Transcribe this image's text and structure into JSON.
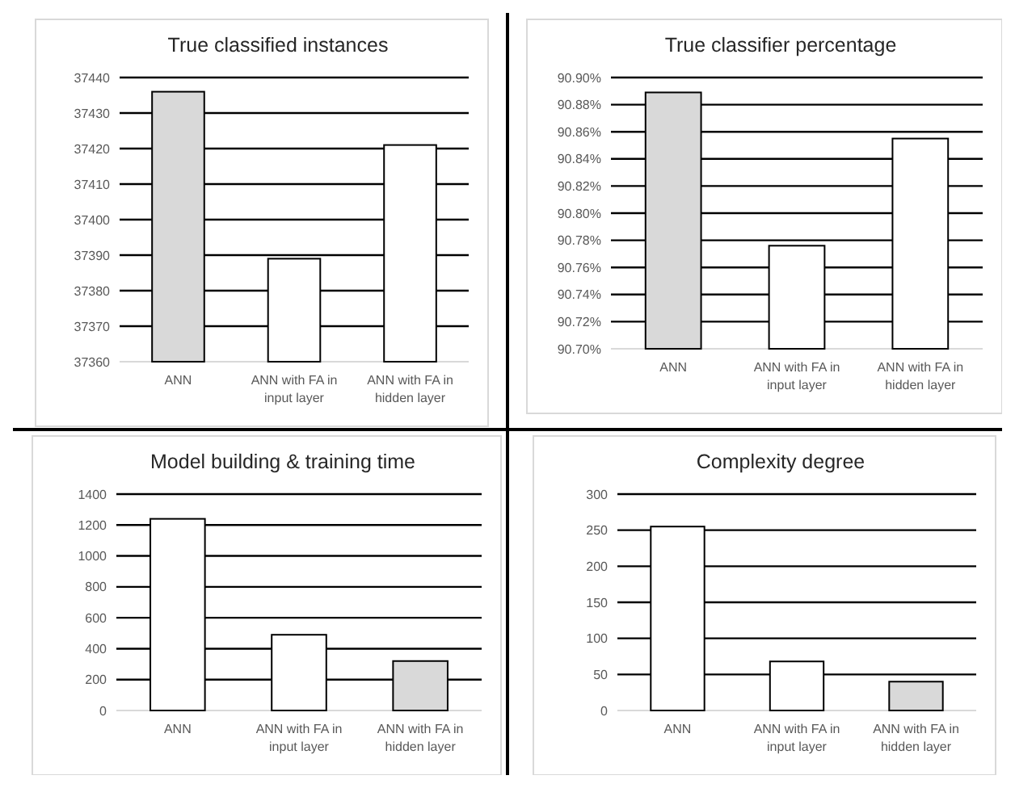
{
  "chart_data": [
    {
      "type": "bar",
      "title": "True classified instances",
      "categories": [
        "ANN",
        "ANN with FA in input layer",
        "ANN with FA in hidden layer"
      ],
      "values": [
        37436,
        37389,
        37421
      ],
      "colors": [
        "#d9d9d9",
        "#ffffff",
        "#ffffff"
      ],
      "ylim": [
        37360,
        37440
      ],
      "yticks": [
        37360,
        37370,
        37380,
        37390,
        37400,
        37410,
        37420,
        37430,
        37440
      ],
      "grid": "y"
    },
    {
      "type": "bar",
      "title": "True classifier percentage",
      "categories": [
        "ANN",
        "ANN with FA in input layer",
        "ANN with FA in hidden layer"
      ],
      "values": [
        90.889,
        90.776,
        90.855
      ],
      "colors": [
        "#d9d9d9",
        "#ffffff",
        "#ffffff"
      ],
      "ylim": [
        90.7,
        90.9
      ],
      "yticks": [
        {
          "value": 90.7,
          "label": "90.70%"
        },
        {
          "value": 90.72,
          "label": "90.72%"
        },
        {
          "value": 90.74,
          "label": "90.74%"
        },
        {
          "value": 90.76,
          "label": "90.76%"
        },
        {
          "value": 90.78,
          "label": "90.78%"
        },
        {
          "value": 90.8,
          "label": "90.80%"
        },
        {
          "value": 90.82,
          "label": "90.82%"
        },
        {
          "value": 90.84,
          "label": "90.84%"
        },
        {
          "value": 90.86,
          "label": "90.86%"
        },
        {
          "value": 90.88,
          "label": "90.88%"
        },
        {
          "value": 90.9,
          "label": "90.90%"
        }
      ],
      "grid": "y"
    },
    {
      "type": "bar",
      "title": "Model building & training time",
      "categories": [
        "ANN",
        "ANN with FA in input layer",
        "ANN with FA in hidden layer"
      ],
      "values": [
        1240,
        490,
        320
      ],
      "colors": [
        "#ffffff",
        "#ffffff",
        "#d9d9d9"
      ],
      "ylim": [
        0,
        1400
      ],
      "yticks": [
        0,
        200,
        400,
        600,
        800,
        1000,
        1200,
        1400
      ],
      "grid": "y"
    },
    {
      "type": "bar",
      "title": "Complexity degree",
      "categories": [
        "ANN",
        "ANN with FA in input layer",
        "ANN with FA in hidden layer"
      ],
      "values": [
        255,
        68,
        40
      ],
      "colors": [
        "#ffffff",
        "#ffffff",
        "#d9d9d9"
      ],
      "ylim": [
        0,
        300
      ],
      "yticks": [
        0,
        50,
        100,
        150,
        200,
        250,
        300
      ],
      "grid": "y"
    }
  ]
}
